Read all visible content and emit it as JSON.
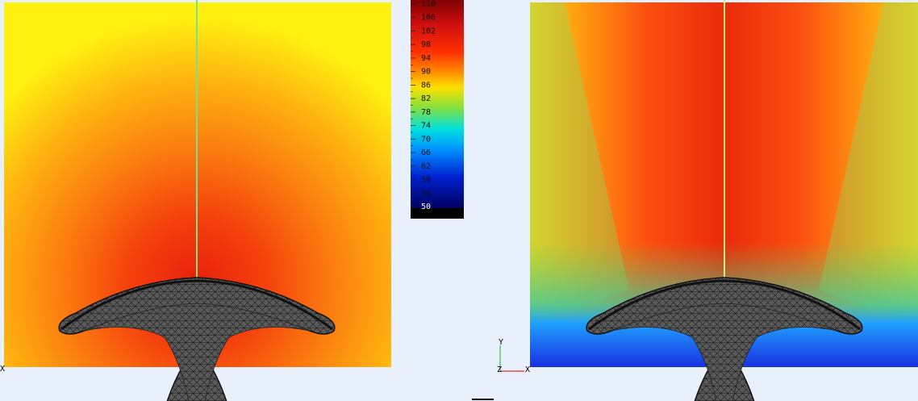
{
  "colorbar": {
    "labels": [
      110,
      106,
      102,
      98,
      94,
      90,
      86,
      82,
      78,
      74,
      70,
      66,
      62,
      58,
      54,
      50
    ]
  },
  "axes_triad": {
    "y": "Y",
    "z": "Z",
    "x": "X"
  },
  "left_view": {
    "axis_label": "X"
  }
}
